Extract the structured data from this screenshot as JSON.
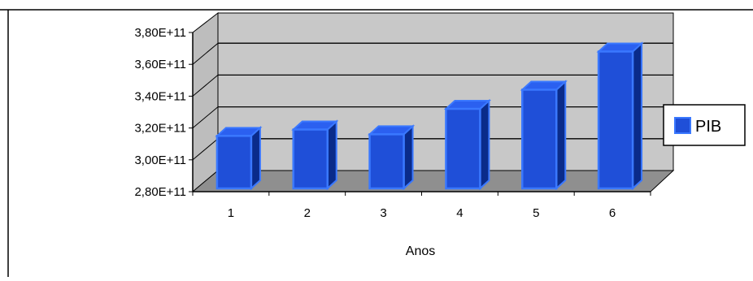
{
  "chart_data": {
    "type": "bar",
    "style": "3d-column",
    "categories": [
      "1",
      "2",
      "3",
      "4",
      "5",
      "6"
    ],
    "series": [
      {
        "name": "PIB",
        "values": [
          313000000000.0,
          317000000000.0,
          314000000000.0,
          330000000000.0,
          342000000000.0,
          366000000000.0
        ]
      }
    ],
    "title": "",
    "xlabel": "Anos",
    "ylabel": "",
    "ylim": [
      280000000000.0,
      380000000000.0
    ],
    "yticks": [
      "2,80E+11",
      "3,00E+11",
      "3,20E+11",
      "3,40E+11",
      "3,60E+11",
      "3,80E+11"
    ],
    "grid": true,
    "legend": "right",
    "colors": {
      "bar_front": "#1f4fd8",
      "bar_edge": "#3a78ff",
      "bar_top": "#2b60f0",
      "bar_side": "#0a2b8a",
      "wall": "#c8c8c8",
      "floor": "#8f8f8f"
    }
  }
}
